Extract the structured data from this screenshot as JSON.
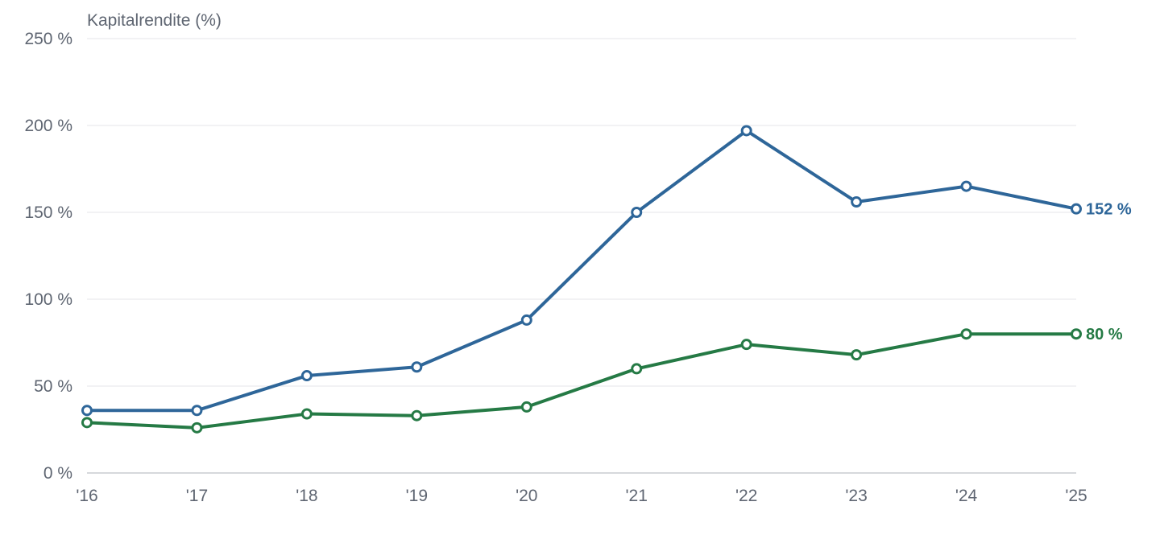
{
  "chart_data": {
    "type": "line",
    "ylabel": "Kapitalrendite (%)",
    "categories": [
      "'16",
      "'17",
      "'18",
      "'19",
      "'20",
      "'21",
      "'22",
      "'23",
      "'24",
      "'25"
    ],
    "yticks": [
      {
        "value": 0,
        "label": "0 %"
      },
      {
        "value": 50,
        "label": "50 %"
      },
      {
        "value": 100,
        "label": "100 %"
      },
      {
        "value": 150,
        "label": "150 %"
      },
      {
        "value": 200,
        "label": "200 %"
      },
      {
        "value": 250,
        "label": "250 %"
      }
    ],
    "ylim": [
      0,
      250
    ],
    "grid": true,
    "series": [
      {
        "color": "#2e6699",
        "values": [
          36,
          36,
          56,
          61,
          88,
          150,
          197,
          156,
          165,
          152
        ],
        "end_label": "152 %"
      },
      {
        "color": "#257a45",
        "values": [
          29,
          26,
          34,
          33,
          38,
          60,
          74,
          68,
          80,
          80
        ],
        "end_label": "80 %"
      }
    ]
  }
}
